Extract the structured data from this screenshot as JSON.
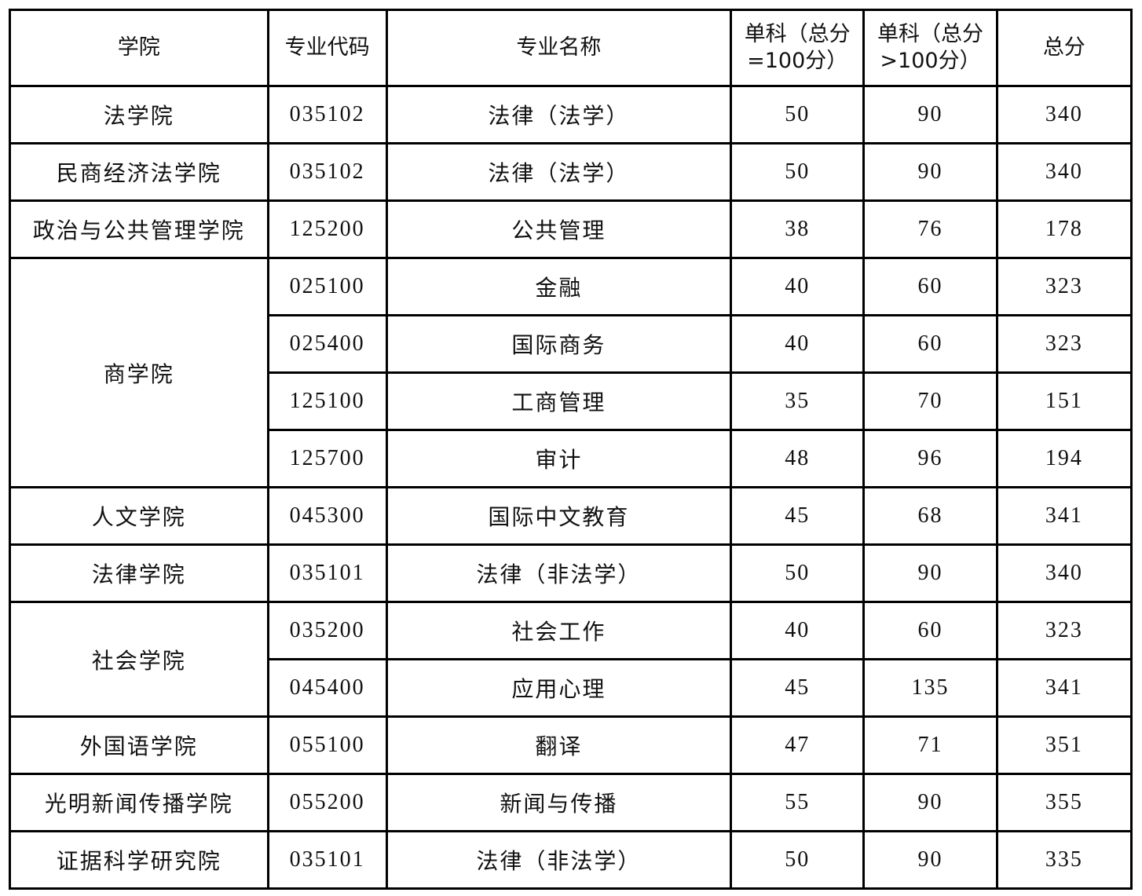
{
  "headers": [
    "学院",
    "专业代码",
    "专业名称",
    "单科（总分=100分）",
    "单科（总分>100分）",
    "总分"
  ],
  "groups": [
    {
      "college": "法学院",
      "programs": [
        {
          "code": "035102",
          "name": "法律（法学）",
          "single_100": "50",
          "single_over_100": "90",
          "total": "340"
        }
      ]
    },
    {
      "college": "民商经济法学院",
      "programs": [
        {
          "code": "035102",
          "name": "法律（法学）",
          "single_100": "50",
          "single_over_100": "90",
          "total": "340"
        }
      ]
    },
    {
      "college": "政治与公共管理学院",
      "programs": [
        {
          "code": "125200",
          "name": "公共管理",
          "single_100": "38",
          "single_over_100": "76",
          "total": "178"
        }
      ]
    },
    {
      "college": "商学院",
      "programs": [
        {
          "code": "025100",
          "name": "金融",
          "single_100": "40",
          "single_over_100": "60",
          "total": "323"
        },
        {
          "code": "025400",
          "name": "国际商务",
          "single_100": "40",
          "single_over_100": "60",
          "total": "323"
        },
        {
          "code": "125100",
          "name": "工商管理",
          "single_100": "35",
          "single_over_100": "70",
          "total": "151"
        },
        {
          "code": "125700",
          "name": "审计",
          "single_100": "48",
          "single_over_100": "96",
          "total": "194"
        }
      ]
    },
    {
      "college": "人文学院",
      "programs": [
        {
          "code": "045300",
          "name": "国际中文教育",
          "single_100": "45",
          "single_over_100": "68",
          "total": "341"
        }
      ]
    },
    {
      "college": "法律学院",
      "programs": [
        {
          "code": "035101",
          "name": "法律（非法学）",
          "single_100": "50",
          "single_over_100": "90",
          "total": "340"
        }
      ]
    },
    {
      "college": "社会学院",
      "programs": [
        {
          "code": "035200",
          "name": "社会工作",
          "single_100": "40",
          "single_over_100": "60",
          "total": "323"
        },
        {
          "code": "045400",
          "name": "应用心理",
          "single_100": "45",
          "single_over_100": "135",
          "total": "341"
        }
      ]
    },
    {
      "college": "外国语学院",
      "programs": [
        {
          "code": "055100",
          "name": "翻译",
          "single_100": "47",
          "single_over_100": "71",
          "total": "351"
        }
      ]
    },
    {
      "college": "光明新闻传播学院",
      "programs": [
        {
          "code": "055200",
          "name": "新闻与传播",
          "single_100": "55",
          "single_over_100": "90",
          "total": "355"
        }
      ]
    },
    {
      "college": "证据科学研究院",
      "programs": [
        {
          "code": "035101",
          "name": "法律（非法学）",
          "single_100": "50",
          "single_over_100": "90",
          "total": "335"
        }
      ]
    }
  ]
}
